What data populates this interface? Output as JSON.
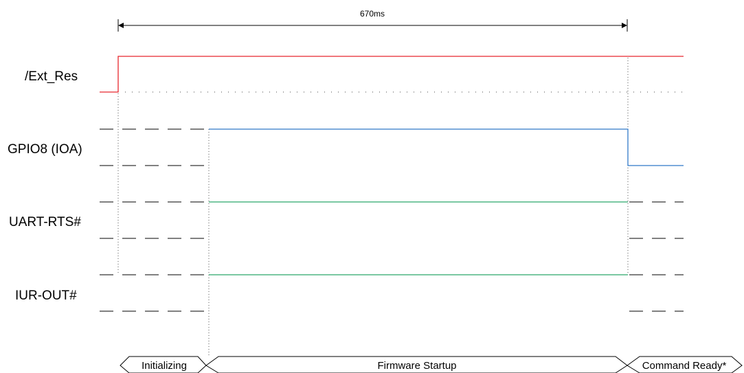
{
  "duration": {
    "label": "670ms"
  },
  "signals": {
    "ext_res": {
      "label": "/Ext_Res",
      "color": "#e8262d"
    },
    "gpio8": {
      "label": "GPIO8 (IOA)",
      "color": "#2f78c8"
    },
    "uart_rts": {
      "label": "UART-RTS#",
      "color": "#2aa86a"
    },
    "iur_out": {
      "label": "IUR-OUT#",
      "color": "#2aa86a"
    }
  },
  "phases": {
    "initializing": "Initializing",
    "firmware_startup": "Firmware Startup",
    "command_ready": "Command Ready*"
  }
}
